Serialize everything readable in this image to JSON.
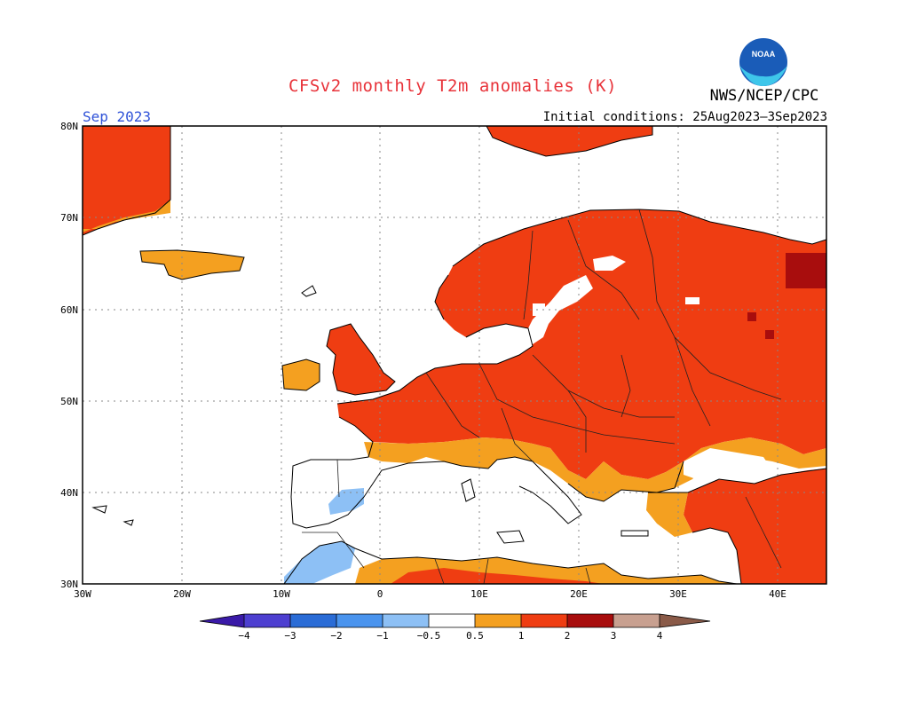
{
  "header": {
    "title": "CFSv2 monthly T2m anomalies (K)",
    "agency": "NWS/NCEP/CPC",
    "period": "Sep 2023",
    "initial_conditions": "Initial conditions: 25Aug2023–3Sep2023",
    "logo_text": "NOAA"
  },
  "colors": {
    "title": "#e8333a",
    "period": "#2f52d8",
    "neg_4": "#3a1aa8",
    "neg_3": "#4d3fd0",
    "neg_2": "#2a6cd6",
    "neg_1": "#4a94ee",
    "neg_05": "#8dc0f5",
    "pos_05": "#f4a020",
    "pos_1": "#ef3d12",
    "pos_2": "#a80d0d",
    "pos_3": "#c8a090",
    "pos_4": "#8a5a48"
  },
  "axes": {
    "latitudes": [
      "80N",
      "70N",
      "60N",
      "50N",
      "40N",
      "30N"
    ],
    "longitudes": [
      "30W",
      "20W",
      "10W",
      "0",
      "10E",
      "20E",
      "30E",
      "40E"
    ]
  },
  "colorbar": {
    "labels": [
      "−4",
      "−3",
      "−2",
      "−1",
      "−0.5",
      "0.5",
      "1",
      "2",
      "3",
      "4"
    ]
  }
}
